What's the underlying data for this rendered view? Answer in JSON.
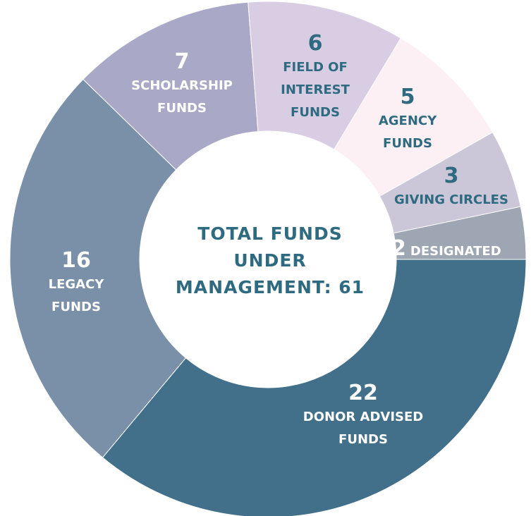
{
  "chart_data": {
    "type": "donut",
    "center_label": "TOTAL FUNDS UNDER MANAGEMENT: 61",
    "categories": [
      "DONOR ADVISED FUNDS",
      "LEGACY FUNDS",
      "SCHOLARSHIP FUNDS",
      "FIELD OF INTEREST FUNDS",
      "AGENCY FUNDS",
      "GIVING CIRCLES",
      "DESIGNATED"
    ],
    "values": [
      22,
      16,
      7,
      6,
      5,
      3,
      2
    ],
    "colors": [
      "#42708a",
      "#7a8fa8",
      "#a9a8c6",
      "#d8cde3",
      "#fcf0f5",
      "#cbc6d8",
      "#9ea6b3"
    ]
  }
}
